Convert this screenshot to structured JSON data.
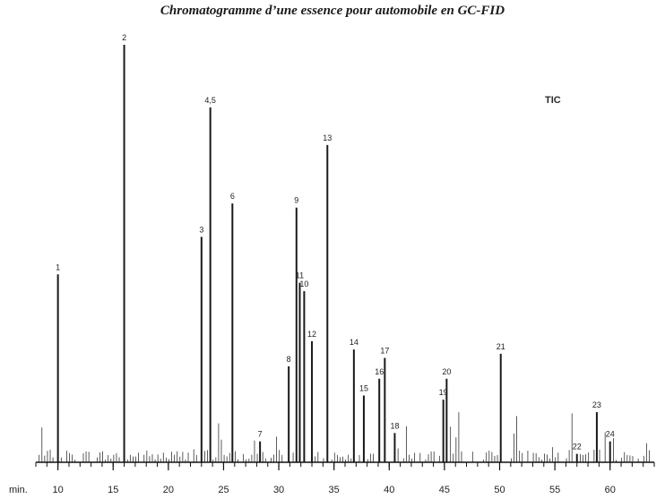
{
  "chart_data": {
    "type": "line",
    "title": "Chromatogramme d’une essence pour automobile en GC-FID",
    "detector_label": "TIC",
    "xlabel": "min.",
    "ylabel": "",
    "xlim": [
      8,
      64
    ],
    "ylim": [
      0,
      100
    ],
    "grid": false,
    "x_ticks": [
      10,
      15,
      20,
      25,
      30,
      35,
      40,
      45,
      50,
      55,
      60
    ],
    "peaks": [
      {
        "label": "1",
        "rt": 10.0,
        "height": 45
      },
      {
        "label": "2",
        "rt": 16.0,
        "height": 100
      },
      {
        "label": "3",
        "rt": 23.0,
        "height": 54
      },
      {
        "label": "4,5",
        "rt": 23.8,
        "height": 85
      },
      {
        "label": "6",
        "rt": 25.8,
        "height": 62
      },
      {
        "label": "7",
        "rt": 28.3,
        "height": 5
      },
      {
        "label": "8",
        "rt": 30.9,
        "height": 23
      },
      {
        "label": "9",
        "rt": 31.6,
        "height": 61
      },
      {
        "label": "10",
        "rt": 32.3,
        "height": 41
      },
      {
        "label": "11",
        "rt": 31.9,
        "height": 43
      },
      {
        "label": "12",
        "rt": 33.0,
        "height": 29
      },
      {
        "label": "13",
        "rt": 34.4,
        "height": 76
      },
      {
        "label": "14",
        "rt": 36.8,
        "height": 27
      },
      {
        "label": "15",
        "rt": 37.7,
        "height": 16
      },
      {
        "label": "16",
        "rt": 39.1,
        "height": 20
      },
      {
        "label": "17",
        "rt": 39.6,
        "height": 25
      },
      {
        "label": "18",
        "rt": 40.5,
        "height": 7
      },
      {
        "label": "19",
        "rt": 44.9,
        "height": 15
      },
      {
        "label": "20",
        "rt": 45.2,
        "height": 20
      },
      {
        "label": "21",
        "rt": 50.1,
        "height": 26
      },
      {
        "label": "22",
        "rt": 57.0,
        "height": 2
      },
      {
        "label": "23",
        "rt": 58.8,
        "height": 12
      },
      {
        "label": "24",
        "rt": 60.0,
        "height": 5
      }
    ]
  }
}
